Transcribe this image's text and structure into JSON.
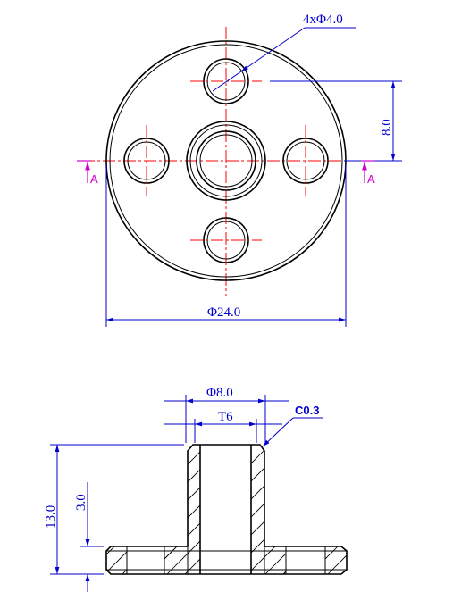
{
  "top_view": {
    "hole_callout": "4xΦ4.0",
    "offset_dim": "8.0",
    "outer_dia": "Φ24.0",
    "section_label_left": "A",
    "section_label_right": "A"
  },
  "side_view": {
    "boss_dia": "Φ8.0",
    "thread": "T6",
    "chamfer": "C0.3",
    "height": "13.0",
    "flange_thickness": "3.0"
  },
  "colors": {
    "outline": "#000000",
    "centerline": "#ff0000",
    "dimension": "#0000cc",
    "section_marker": "#d000d0"
  }
}
